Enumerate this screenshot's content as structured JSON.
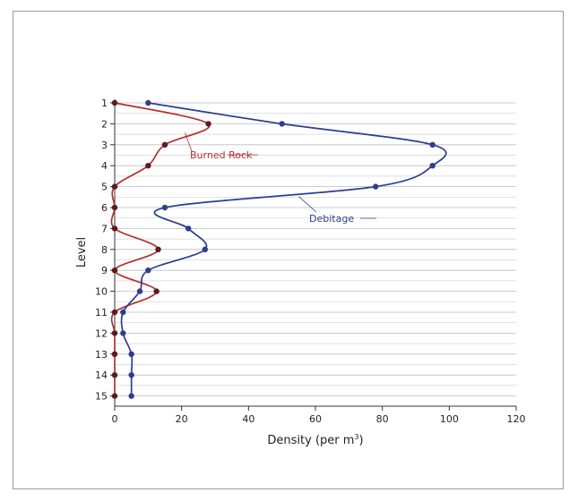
{
  "chart_data": {
    "type": "line",
    "orientation": "vertical-profile",
    "xlabel": "Density (per m",
    "xlabel_superscript": "3",
    "xlabel_suffix": ")",
    "ylabel": "Level",
    "xlim": [
      0,
      120
    ],
    "x_ticks": [
      0,
      20,
      40,
      60,
      80,
      100,
      120
    ],
    "levels": [
      1,
      2,
      3,
      4,
      5,
      6,
      7,
      8,
      9,
      10,
      11,
      12,
      13,
      14,
      15
    ],
    "grid": true,
    "series": [
      {
        "name": "Burned Rock",
        "color": "#b5302c",
        "marker_color": "#5a1b22",
        "values": [
          0,
          28,
          15,
          10,
          0,
          0,
          0,
          13,
          0,
          12.5,
          0,
          0,
          0,
          0,
          0
        ]
      },
      {
        "name": "Debitage",
        "color": "#2e3d8f",
        "marker_color": "#2e3d8f",
        "values": [
          10,
          50,
          95,
          95,
          78,
          15,
          22,
          27,
          10,
          7.5,
          2.5,
          2.5,
          5,
          5,
          5
        ]
      }
    ],
    "annotations": [
      {
        "text": "Burned Rock",
        "series": "Burned Rock"
      },
      {
        "text": "Debitage",
        "series": "Debitage"
      }
    ]
  }
}
